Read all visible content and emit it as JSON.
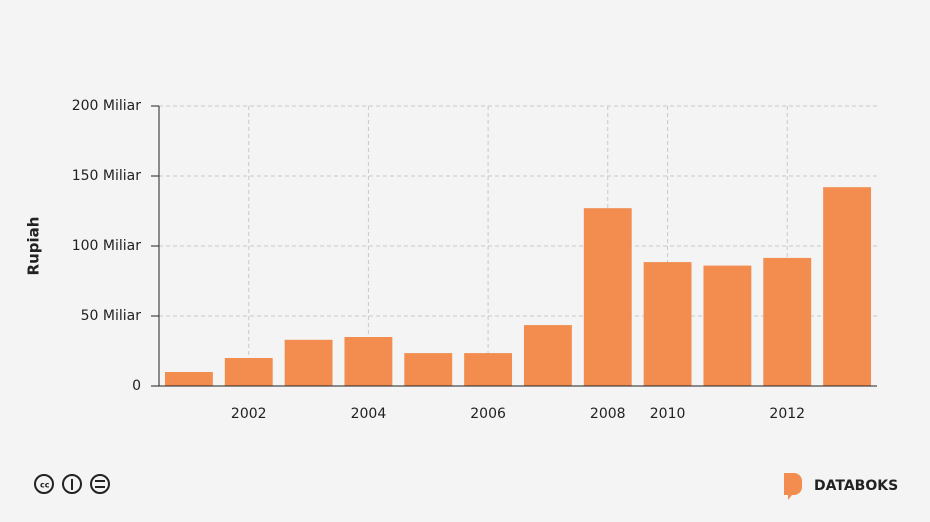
{
  "chart_data": {
    "type": "bar",
    "ylabel": "Rupiah",
    "categories": [
      null,
      "2002",
      null,
      "2004",
      null,
      "2006",
      null,
      "2008",
      "2010",
      null,
      "2012",
      null
    ],
    "values": [
      10,
      20,
      33,
      35,
      23.5,
      23.5,
      43.5,
      127,
      88.5,
      86,
      91.5,
      142
    ],
    "color": "#f28c4f",
    "ylim": [
      0,
      200
    ],
    "yticks": [
      0,
      {
        "value": 50,
        "label": "50 Miliar"
      },
      {
        "value": 100,
        "label": "100 Miliar"
      },
      {
        "value": 150,
        "label": "150 Miliar"
      },
      {
        "value": 200,
        "label": "200 Miliar"
      }
    ],
    "grid": true
  },
  "footer": {
    "brand": "DATABOKS"
  }
}
